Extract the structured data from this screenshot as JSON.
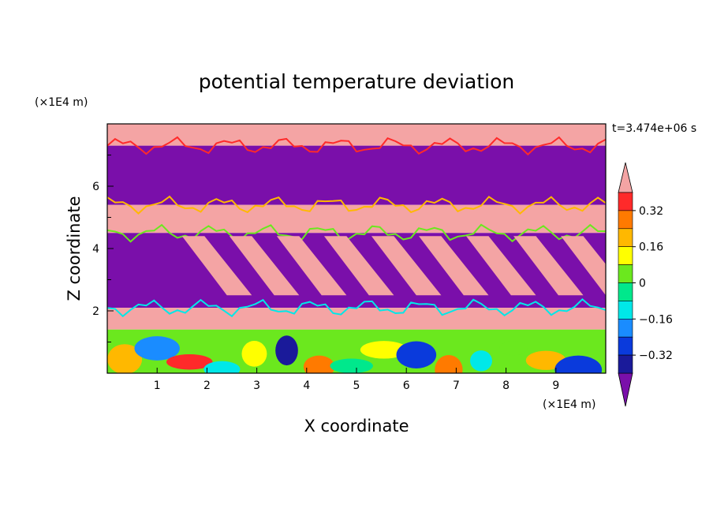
{
  "chart_data": {
    "type": "heatmap",
    "title": "potential temperature deviation",
    "xlabel": "X coordinate",
    "ylabel": "Z coordinate",
    "x_unit": "(×1E4 m)",
    "y_unit": "(×1E4 m)",
    "time_label": "t=3.474e+06 s",
    "xlim": [
      0,
      10
    ],
    "ylim": [
      0,
      8
    ],
    "x_ticks": [
      "1",
      "2",
      "3",
      "4",
      "5",
      "6",
      "7",
      "8",
      "9"
    ],
    "y_ticks": [
      "2",
      "4",
      "6"
    ],
    "colorbar": {
      "levels": [
        -0.48,
        -0.4,
        -0.32,
        -0.24,
        -0.16,
        -0.08,
        0,
        0.08,
        0.16,
        0.24,
        0.32,
        0.4
      ],
      "tick_labels": [
        "0.32",
        "0.16",
        "0",
        "−0.16",
        "−0.32"
      ],
      "tick_values": [
        0.32,
        0.16,
        0,
        -0.16,
        -0.32
      ],
      "colors": [
        "#7a0faa",
        "#1a1a9a",
        "#0a3adc",
        "#1a8cff",
        "#00e8e8",
        "#00e88c",
        "#6be81e",
        "#ffff00",
        "#ffb800",
        "#ff7a00",
        "#ff2a2a",
        "#f4a4a4"
      ],
      "extend": "both"
    },
    "bands": [
      {
        "z0": 7.3,
        "z1": 8.0,
        "value": 0.45
      },
      {
        "z0": 5.4,
        "z1": 7.3,
        "value": -0.48
      },
      {
        "z0": 4.5,
        "z1": 5.4,
        "value": 0.45
      },
      {
        "z0": 2.1,
        "z1": 4.5,
        "value": -0.48
      },
      {
        "z0": 1.4,
        "z1": 2.1,
        "value": 0.45
      },
      {
        "z0": 0.0,
        "z1": 1.4,
        "value": 0.0
      }
    ]
  }
}
